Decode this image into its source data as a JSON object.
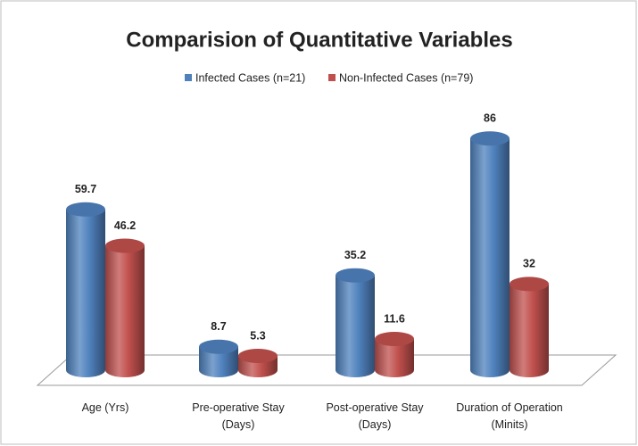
{
  "chart_data": {
    "type": "bar",
    "title": "Comparision of Quantitative Variables",
    "categories": [
      "Age (Yrs)",
      "Pre-operative Stay (Days)",
      "Post-operative Stay (Days)",
      "Duration of Operation (Minits)"
    ],
    "series": [
      {
        "name": "Infected Cases (n=21)",
        "color": "#4f81bd",
        "values": [
          59.7,
          8.7,
          35.2,
          86
        ]
      },
      {
        "name": "Non-Infected Cases (n=79)",
        "color": "#c0504d",
        "values": [
          46.2,
          5.3,
          11.6,
          32
        ]
      }
    ],
    "legend": "top"
  }
}
